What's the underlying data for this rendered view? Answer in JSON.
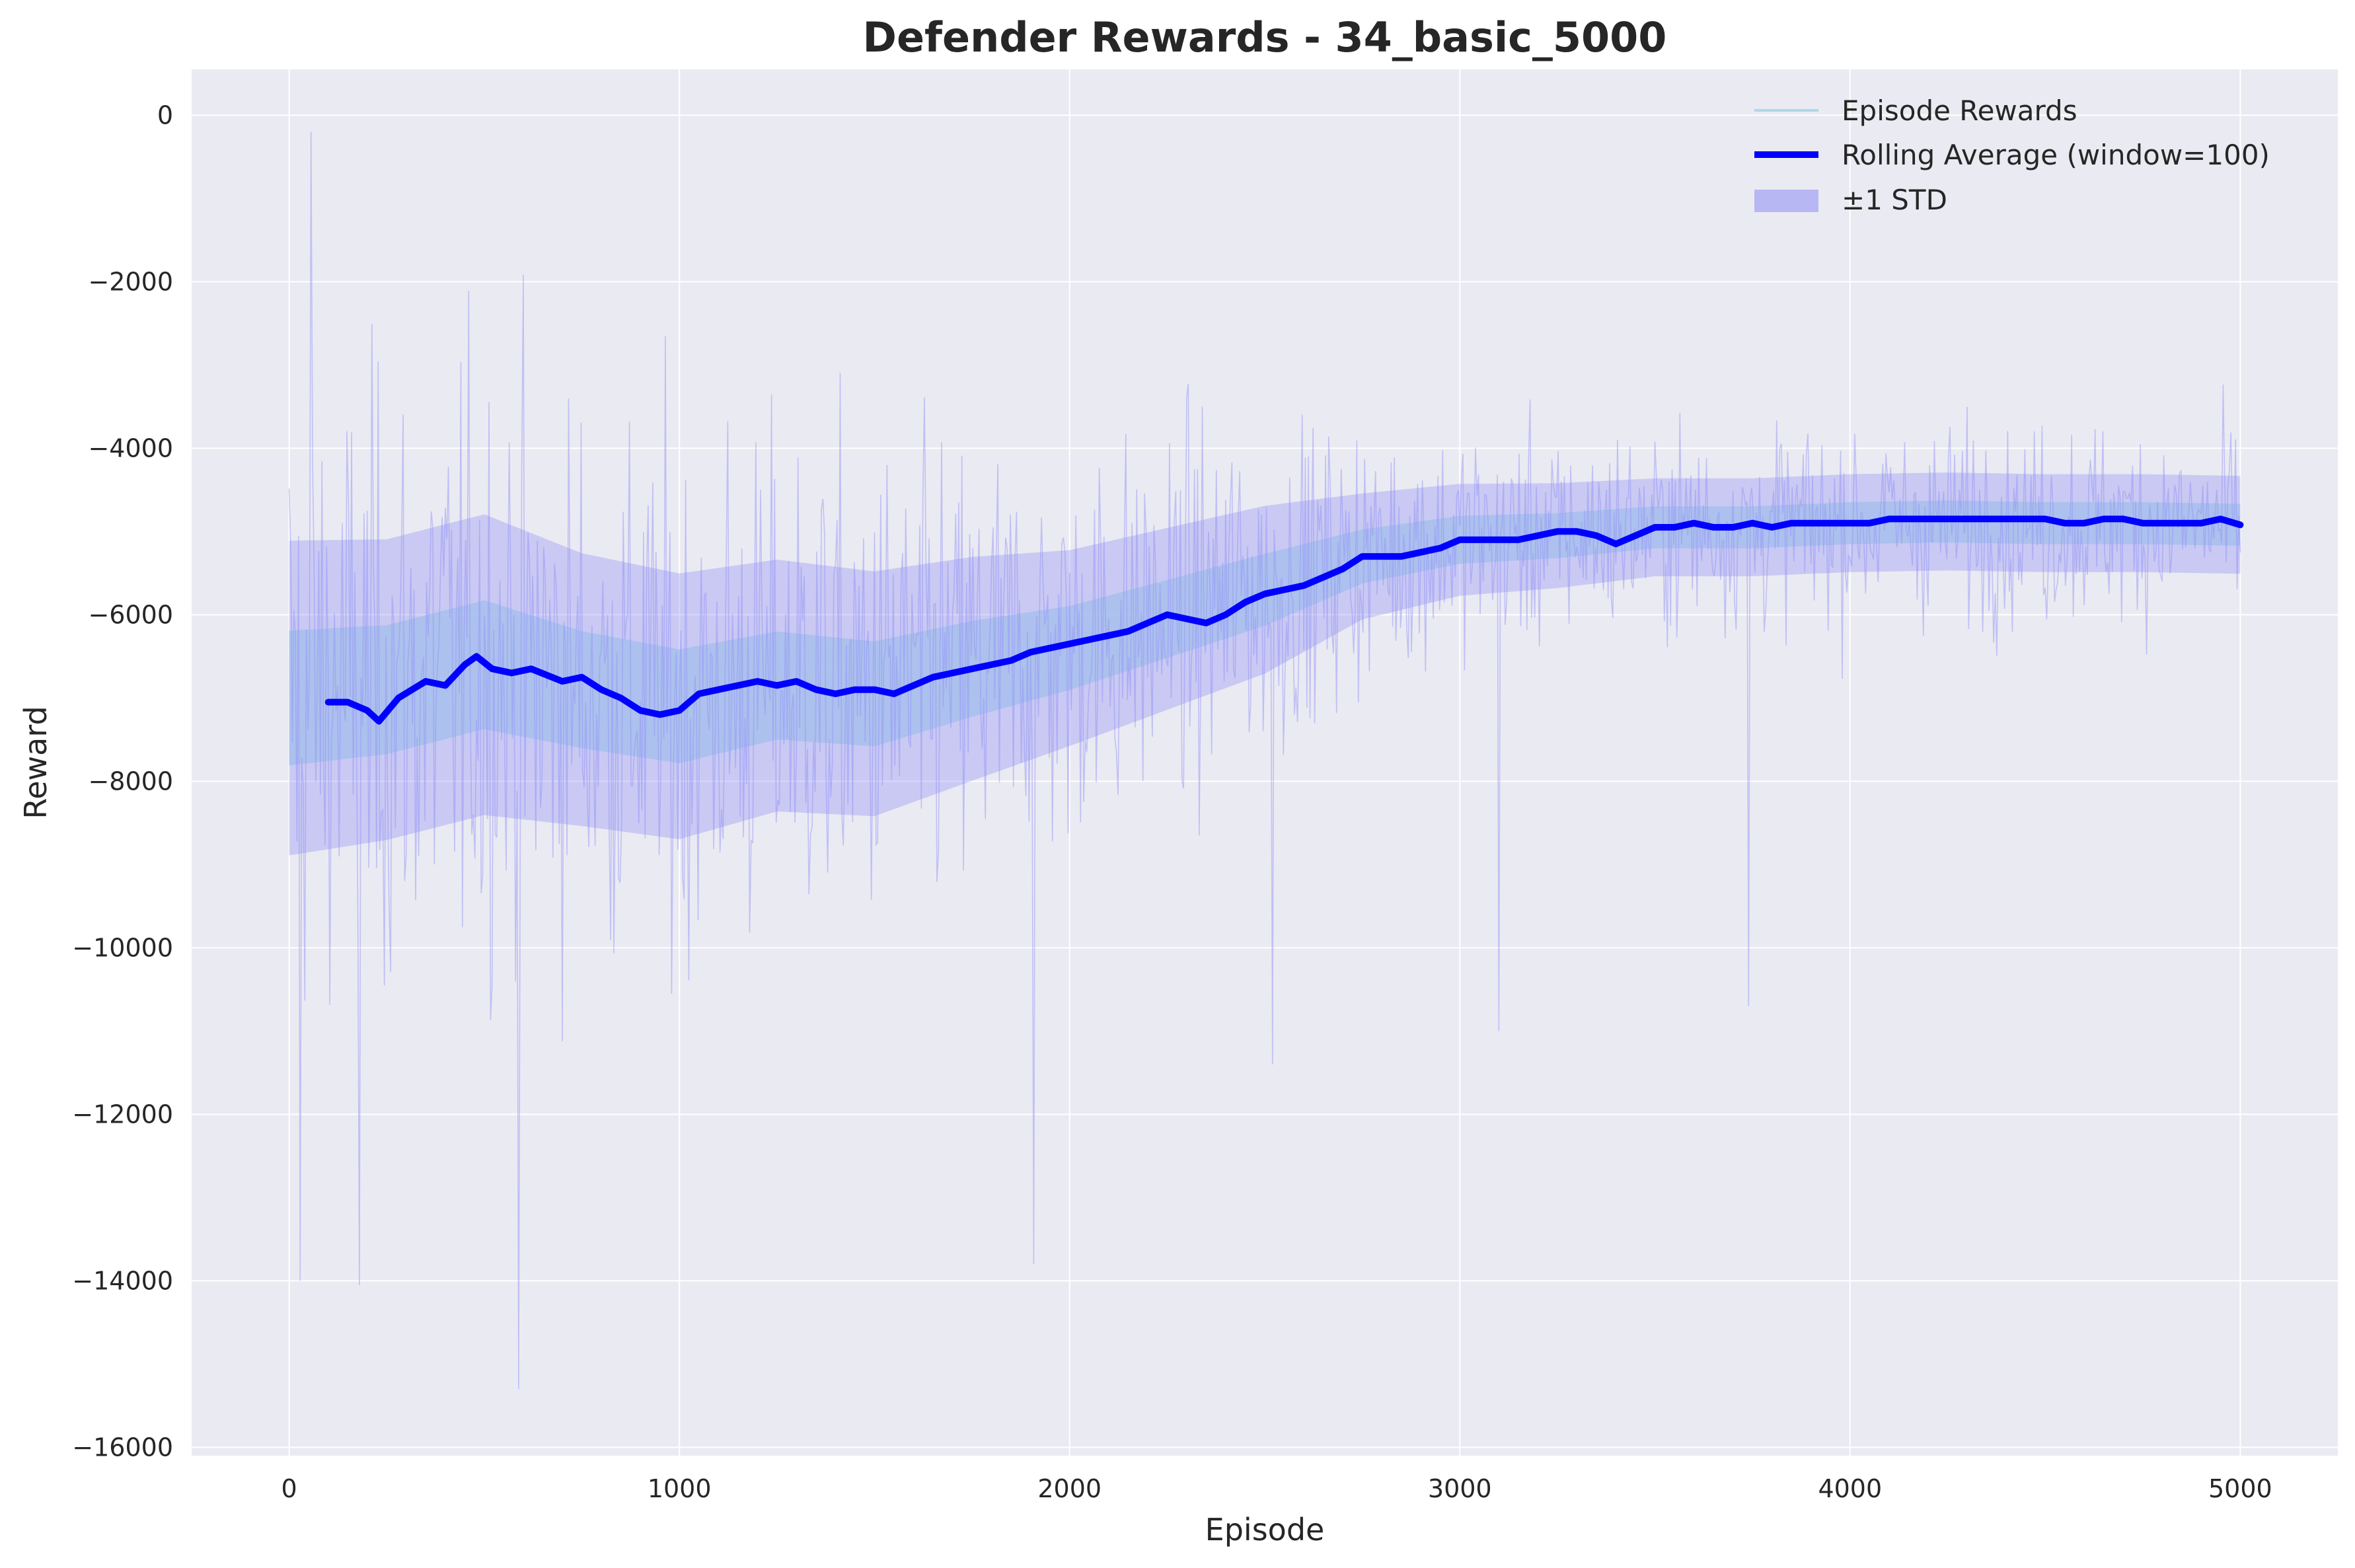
{
  "chart_data": {
    "type": "line",
    "title": "Defender Rewards - 34_basic_5000",
    "xlabel": "Episode",
    "ylabel": "Reward",
    "xlim": [
      -250,
      5250
    ],
    "ylim": [
      -16100,
      550
    ],
    "xticks": [
      0,
      1000,
      2000,
      3000,
      4000,
      5000
    ],
    "yticks": [
      0,
      -2000,
      -4000,
      -6000,
      -8000,
      -10000,
      -12000,
      -14000,
      -16000
    ],
    "grid": true,
    "legend_position": "top-right",
    "legend": [
      {
        "label": "Episode Rewards",
        "kind": "line-thin"
      },
      {
        "label": "Rolling Average (window=100)",
        "kind": "line-thick"
      },
      {
        "label": "±1 STD",
        "kind": "patch"
      }
    ],
    "colors": {
      "axes_bg": "#eaeaf2",
      "grid": "#ffffff",
      "episode_rewards": "#add8e6",
      "rolling_average": "#0000ff",
      "std_band": "#8c8cf5",
      "text": "#262626"
    },
    "episodes": {
      "start": 0,
      "end": 5000
    },
    "episode_reward_envelope": {
      "x": [
        0,
        250,
        500,
        750,
        1000,
        1250,
        1500,
        1750,
        2000,
        2250,
        2500,
        2750,
        3000,
        3250,
        3500,
        3750,
        4000,
        4250,
        4500,
        4750,
        5000
      ],
      "mean": [
        -7000,
        -6900,
        -6600,
        -6900,
        -7100,
        -6850,
        -6950,
        -6650,
        -6400,
        -6050,
        -5700,
        -5300,
        -5100,
        -5050,
        -4950,
        -4950,
        -4900,
        -4880,
        -4900,
        -4900,
        -4920
      ],
      "spread": [
        4500,
        4300,
        4300,
        3900,
        3800,
        3600,
        3500,
        3200,
        2800,
        2600,
        2400,
        1800,
        1600,
        1500,
        1400,
        1400,
        1400,
        1400,
        1400,
        1400,
        1400
      ]
    },
    "episode_reward_extremes": [
      {
        "x": 30,
        "y": -14000
      },
      {
        "x": 55,
        "y": -200
      },
      {
        "x": 180,
        "y": -14050
      },
      {
        "x": 590,
        "y": -15300
      },
      {
        "x": 1910,
        "y": -13800
      },
      {
        "x": 2520,
        "y": -11400
      },
      {
        "x": 3100,
        "y": -11000
      },
      {
        "x": 3740,
        "y": -10700
      }
    ],
    "rolling_average": {
      "x": [
        100,
        150,
        200,
        230,
        280,
        350,
        400,
        450,
        480,
        520,
        570,
        620,
        700,
        750,
        800,
        850,
        900,
        950,
        1000,
        1050,
        1100,
        1150,
        1200,
        1250,
        1300,
        1350,
        1400,
        1450,
        1500,
        1550,
        1600,
        1650,
        1700,
        1750,
        1800,
        1850,
        1900,
        1950,
        2000,
        2050,
        2100,
        2150,
        2200,
        2250,
        2300,
        2350,
        2400,
        2450,
        2500,
        2550,
        2600,
        2650,
        2700,
        2750,
        2800,
        2850,
        2900,
        2950,
        3000,
        3050,
        3100,
        3150,
        3200,
        3250,
        3300,
        3350,
        3400,
        3450,
        3500,
        3550,
        3600,
        3650,
        3700,
        3750,
        3800,
        3850,
        3900,
        3950,
        4000,
        4050,
        4100,
        4150,
        4200,
        4250,
        4300,
        4350,
        4400,
        4450,
        4500,
        4550,
        4600,
        4650,
        4700,
        4750,
        4800,
        4850,
        4900,
        4950,
        5000
      ],
      "y": [
        -7050,
        -7050,
        -7150,
        -7280,
        -7000,
        -6800,
        -6850,
        -6600,
        -6500,
        -6650,
        -6700,
        -6650,
        -6800,
        -6750,
        -6900,
        -7000,
        -7150,
        -7200,
        -7150,
        -6950,
        -6900,
        -6850,
        -6800,
        -6850,
        -6800,
        -6900,
        -6950,
        -6900,
        -6900,
        -6950,
        -6850,
        -6750,
        -6700,
        -6650,
        -6600,
        -6550,
        -6450,
        -6400,
        -6350,
        -6300,
        -6250,
        -6200,
        -6100,
        -6000,
        -6050,
        -6100,
        -6000,
        -5850,
        -5750,
        -5700,
        -5650,
        -5550,
        -5450,
        -5300,
        -5300,
        -5300,
        -5250,
        -5200,
        -5100,
        -5100,
        -5100,
        -5100,
        -5050,
        -5000,
        -5000,
        -5050,
        -5150,
        -5050,
        -4950,
        -4950,
        -4900,
        -4950,
        -4950,
        -4900,
        -4950,
        -4900,
        -4900,
        -4900,
        -4900,
        -4900,
        -4850,
        -4850,
        -4850,
        -4850,
        -4850,
        -4850,
        -4850,
        -4850,
        -4850,
        -4900,
        -4900,
        -4850,
        -4850,
        -4900,
        -4900,
        -4900,
        -4900,
        -4850,
        -4920
      ]
    }
  }
}
